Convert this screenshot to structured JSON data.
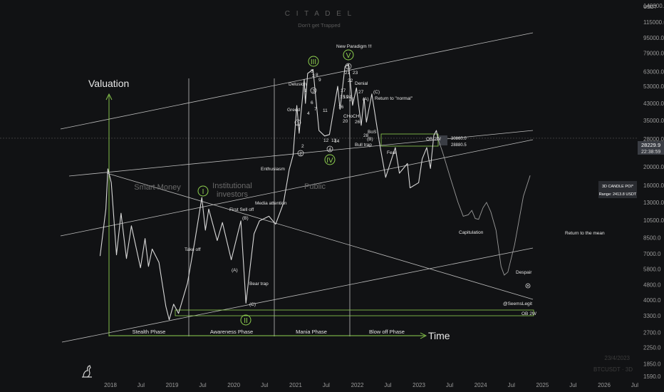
{
  "header": {
    "brand": "C I T A D E L",
    "tagline": "Don't get Trapped",
    "currency": "USDT"
  },
  "watermark": {
    "date": "23/4/2023",
    "symbol": "BTCUSDT · 3D"
  },
  "colors": {
    "background": "#111214",
    "candles": "#d8d8d8",
    "lines": "#bdbdbd",
    "accent_green": "#8fd14f",
    "price_tag": "#3a3d44",
    "projection": "#9a9a9a"
  },
  "current_price": {
    "price": "28229.9",
    "countdown": "22:38:59"
  },
  "info_box": {
    "title": "3D CANDLE POI*",
    "range": "Range: 2413.8 USDT"
  },
  "chart_data": {
    "type": "line",
    "scale": "log",
    "x_ticks": [
      "2018",
      "Jul",
      "2019",
      "Jul",
      "2020",
      "Jul",
      "2021",
      "Jul",
      "2022",
      "Jul",
      "2023",
      "Jul",
      "2024",
      "Jul",
      "2025",
      "Jul",
      "2026",
      "Jul"
    ],
    "y_ticks": [
      "140000.0",
      "115000.0",
      "95000.0",
      "79000.0",
      "63000.0",
      "53000.0",
      "43000.0",
      "35000.0",
      "28000.0",
      "24000.0",
      "20000.0",
      "16000.0",
      "13000.0",
      "10500.0",
      "8500.0",
      "7000.0",
      "5800.0",
      "4800.0",
      "4000.0",
      "3300.0",
      "2700.0",
      "2250.0",
      "1850.0",
      "1590.0"
    ],
    "series": [
      {
        "values": [
          [
            "2017-11-01",
            6800
          ],
          [
            "2017-12-05",
            12000
          ],
          [
            "2017-12-17",
            19500
          ],
          [
            "2018-01-06",
            16500
          ],
          [
            "2018-02-06",
            6900
          ],
          [
            "2018-03-05",
            11400
          ],
          [
            "2018-04-06",
            6600
          ],
          [
            "2018-05-05",
            9800
          ],
          [
            "2018-06-28",
            5900
          ],
          [
            "2018-07-25",
            8400
          ],
          [
            "2018-08-14",
            6000
          ],
          [
            "2018-09-05",
            7400
          ],
          [
            "2018-10-15",
            6300
          ],
          [
            "2018-11-25",
            3700
          ],
          [
            "2018-12-15",
            3150
          ],
          [
            "2019-01-10",
            3800
          ],
          [
            "2019-02-08",
            3400
          ],
          [
            "2019-04-02",
            4900
          ],
          [
            "2019-05-14",
            8000
          ],
          [
            "2019-06-26",
            13800
          ],
          [
            "2019-07-17",
            9300
          ],
          [
            "2019-08-06",
            12000
          ],
          [
            "2019-09-25",
            8200
          ],
          [
            "2019-10-26",
            10200
          ],
          [
            "2019-12-17",
            6500
          ],
          [
            "2020-02-12",
            10400
          ],
          [
            "2020-03-13",
            3850
          ],
          [
            "2020-04-30",
            8900
          ],
          [
            "2020-06-01",
            10400
          ],
          [
            "2020-07-27",
            11000
          ],
          [
            "2020-09-05",
            10000
          ],
          [
            "2020-10-21",
            12900
          ],
          [
            "2020-11-24",
            19300
          ],
          [
            "2020-12-17",
            23000
          ],
          [
            "2021-01-08",
            41900
          ],
          [
            "2021-01-22",
            30000
          ],
          [
            "2021-02-21",
            57500
          ],
          [
            "2021-02-28",
            43000
          ],
          [
            "2021-03-13",
            61700
          ],
          [
            "2021-04-14",
            64800
          ],
          [
            "2021-05-19",
            31000
          ],
          [
            "2021-06-22",
            29000
          ],
          [
            "2021-07-20",
            29500
          ],
          [
            "2021-09-07",
            52900
          ],
          [
            "2021-09-21",
            40000
          ],
          [
            "2021-10-20",
            67000
          ],
          [
            "2021-11-10",
            69000
          ],
          [
            "2021-12-04",
            42000
          ],
          [
            "2021-12-27",
            51900
          ],
          [
            "2022-01-24",
            33000
          ],
          [
            "2022-02-10",
            45800
          ],
          [
            "2022-02-24",
            34300
          ],
          [
            "2022-03-28",
            48200
          ],
          [
            "2022-05-12",
            26700
          ],
          [
            "2022-06-18",
            17600
          ],
          [
            "2022-08-14",
            25200
          ],
          [
            "2022-09-07",
            18500
          ],
          [
            "2022-10-25",
            20800
          ],
          [
            "2022-11-09",
            15500
          ],
          [
            "2022-12-30",
            16500
          ],
          [
            "2023-01-20",
            22000
          ],
          [
            "2023-02-16",
            25200
          ],
          [
            "2023-03-10",
            19600
          ],
          [
            "2023-03-30",
            29200
          ],
          [
            "2023-04-14",
            31000
          ],
          [
            "2023-04-23",
            28229.9
          ]
        ]
      },
      {
        "values": [
          [
            "2023-04-23",
            28200
          ],
          [
            "2023-05-20",
            24000
          ],
          [
            "2023-07-10",
            17000
          ],
          [
            "2023-08-20",
            13000
          ],
          [
            "2023-09-20",
            11000
          ],
          [
            "2023-10-20",
            11200
          ],
          [
            "2023-11-10",
            11800
          ],
          [
            "2023-11-30",
            10700
          ],
          [
            "2023-12-20",
            10600
          ],
          [
            "2024-01-15",
            12200
          ],
          [
            "2024-02-05",
            13000
          ],
          [
            "2024-03-01",
            11600
          ],
          [
            "2024-04-01",
            9300
          ],
          [
            "2024-05-01",
            6000
          ],
          [
            "2024-05-20",
            5400
          ],
          [
            "2024-06-10",
            5600
          ],
          [
            "2024-07-20",
            7800
          ],
          [
            "2024-09-10",
            14000
          ],
          [
            "2024-10-20",
            18000
          ]
        ]
      }
    ],
    "annotations": {
      "wave_numbers": [
        "1",
        "2",
        "3",
        "4",
        "5",
        "1",
        "2",
        "3",
        "4",
        "5",
        "6",
        "7",
        "8",
        "9",
        "11",
        "12",
        "13",
        "14",
        "15",
        "16",
        "17",
        "19",
        "20",
        "21",
        "22",
        "23",
        "24",
        "25",
        "26",
        "27",
        "28"
      ],
      "wave_letters": [
        "(A)",
        "(B)",
        "(C)",
        "(A)",
        "(B)",
        "(C)"
      ],
      "big_waves": [
        "I",
        "II",
        "III",
        "IV",
        "V"
      ],
      "emotions": [
        "Take off",
        "First Sell off",
        "Bear trap",
        "Media attention",
        "Enthusiasm",
        "Greed",
        "Delusion",
        "New Paradigm !!!",
        "Denial",
        "Return to \"normal\"",
        "BoS",
        "Bull trap",
        "Fear",
        "CHoCH",
        "Capitulation",
        "Despair",
        "Return to the mean"
      ],
      "zones": [
        "Smart Money",
        "Institutional investors",
        "Public"
      ],
      "phases": [
        "Stealth Phase",
        "Awareness Phase",
        "Mania Phase",
        "Blow off Phase"
      ],
      "axis_titles": [
        "Valuation",
        "Time"
      ],
      "ob_labels": [
        "OB 2W",
        "OB 2W"
      ],
      "author": "@SeemsLegit",
      "price_tags": [
        "30860.0",
        "28880.5"
      ]
    }
  }
}
